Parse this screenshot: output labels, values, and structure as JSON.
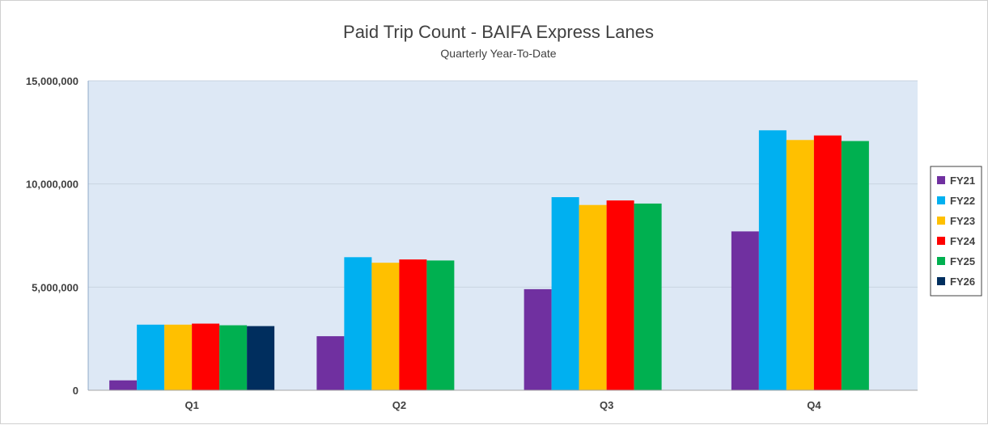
{
  "chart_data": {
    "type": "bar",
    "title": "Paid Trip Count - BAIFA Express Lanes",
    "subtitle": "Quarterly Year-To-Date",
    "categories": [
      "Q1",
      "Q2",
      "Q3",
      "Q4"
    ],
    "series": [
      {
        "name": "FY21",
        "color": "#7030a0",
        "values": [
          480000,
          2620000,
          4900000,
          7700000
        ]
      },
      {
        "name": "FY22",
        "color": "#00b0f0",
        "values": [
          3180000,
          6450000,
          9360000,
          12600000
        ]
      },
      {
        "name": "FY23",
        "color": "#ffc000",
        "values": [
          3180000,
          6180000,
          8980000,
          12130000
        ]
      },
      {
        "name": "FY24",
        "color": "#ff0000",
        "values": [
          3230000,
          6340000,
          9200000,
          12350000
        ]
      },
      {
        "name": "FY25",
        "color": "#00b050",
        "values": [
          3150000,
          6290000,
          9050000,
          12080000
        ]
      },
      {
        "name": "FY26",
        "color": "#002e5e",
        "values": [
          3110000,
          null,
          null,
          null
        ]
      }
    ],
    "ylim": [
      0,
      15000000
    ],
    "yticks": [
      0,
      5000000,
      10000000,
      15000000
    ],
    "ytick_labels": [
      "0",
      "5,000,000",
      "10,000,000",
      "15,000,000"
    ],
    "grid": true,
    "legend_position": "right",
    "plot_background": "#dde8f5"
  }
}
